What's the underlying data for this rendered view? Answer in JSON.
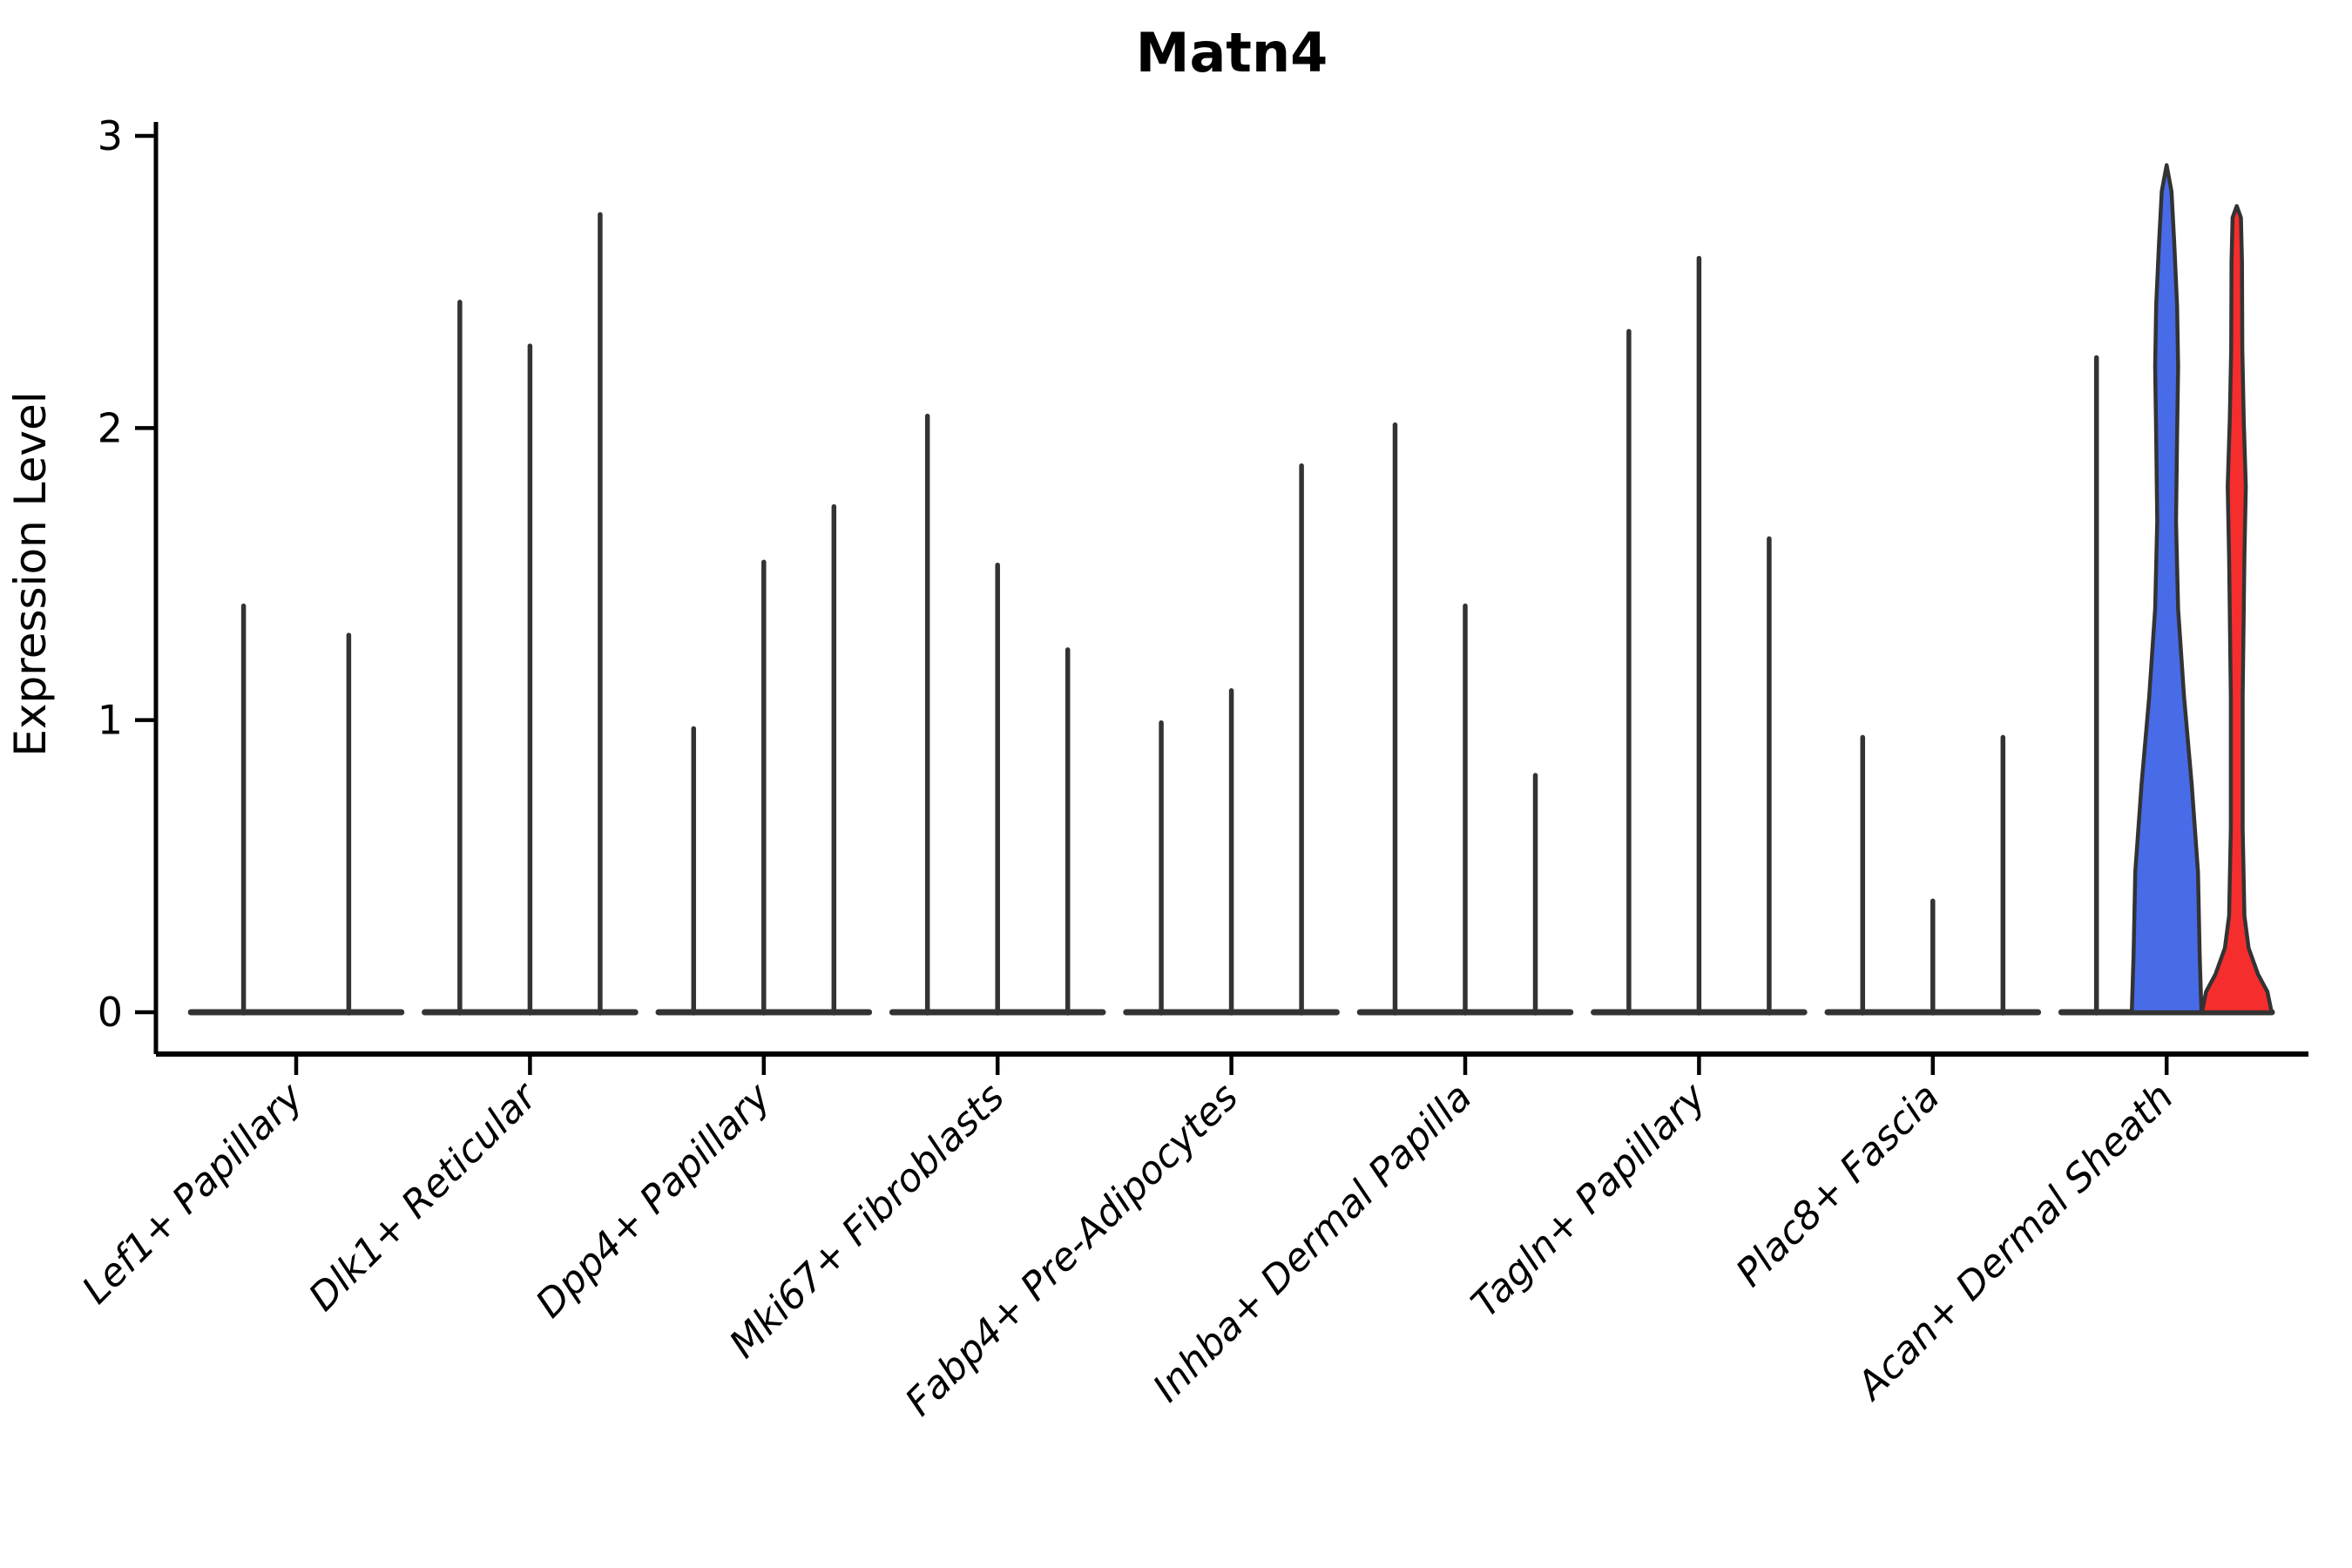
{
  "title": "Matn4",
  "chart_data": {
    "type": "violin",
    "title": "Matn4",
    "xlabel": "",
    "ylabel": "Expression Level",
    "ylim": [
      0,
      3
    ],
    "yticks": [
      "0",
      "1",
      "2",
      "3"
    ],
    "ytick_values": [
      0,
      1,
      2,
      3
    ],
    "grid": "off",
    "legend": "none",
    "categories": [
      "Lef1+ Papillary",
      "Dlk1+ Reticular",
      "Dpp4+ Papillary",
      "Mki67+ Fibroblasts",
      "Fabp4+ Pre-Adipocytes",
      "Inhba+ Dermal Papilla",
      "Tagln+ Papillary",
      "Plac8+ Fascia",
      "Acan+ Dermal Sheath"
    ],
    "groups": [
      {
        "label": "Lef1+ Papillary",
        "violins": [
          {
            "style": "spike",
            "max": 1.4
          },
          {
            "style": "spike",
            "max": 1.3
          }
        ]
      },
      {
        "label": "Dlk1+ Reticular",
        "violins": [
          {
            "style": "spike",
            "max": 2.44
          },
          {
            "style": "spike",
            "max": 2.29
          },
          {
            "style": "spike",
            "max": 2.74
          }
        ]
      },
      {
        "label": "Dpp4+ Papillary",
        "violins": [
          {
            "style": "spike",
            "max": 0.98
          },
          {
            "style": "spike",
            "max": 1.55
          },
          {
            "style": "spike",
            "max": 1.74
          }
        ]
      },
      {
        "label": "Mki67+ Fibroblasts",
        "violins": [
          {
            "style": "spike",
            "max": 2.05
          },
          {
            "style": "spike",
            "max": 1.54
          },
          {
            "style": "spike",
            "max": 1.25
          }
        ]
      },
      {
        "label": "Fabp4+ Pre-Adipocytes",
        "violins": [
          {
            "style": "spike",
            "max": 1.0
          },
          {
            "style": "spike",
            "max": 1.11
          },
          {
            "style": "spike",
            "max": 1.88
          }
        ]
      },
      {
        "label": "Inhba+ Dermal Papilla",
        "violins": [
          {
            "style": "spike",
            "max": 2.02
          },
          {
            "style": "spike",
            "max": 1.4
          },
          {
            "style": "spike",
            "max": 0.82
          }
        ]
      },
      {
        "label": "Tagln+ Papillary",
        "violins": [
          {
            "style": "spike",
            "max": 2.34
          },
          {
            "style": "spike",
            "max": 2.59
          },
          {
            "style": "spike",
            "max": 1.63
          }
        ]
      },
      {
        "label": "Plac8+ Fascia",
        "violins": [
          {
            "style": "spike",
            "max": 0.95
          },
          {
            "style": "spike",
            "max": 0.39
          },
          {
            "style": "spike",
            "max": 0.95
          }
        ]
      },
      {
        "label": "Acan+ Dermal Sheath",
        "violins": [
          {
            "style": "spike",
            "max": 2.25
          },
          {
            "style": "filled",
            "max": 2.9,
            "fill": "#486BE8",
            "profile": [
              [
                0,
                1
              ],
              [
                0.19,
                0.95
              ],
              [
                0.48,
                0.9
              ],
              [
                0.78,
                0.72
              ],
              [
                1.08,
                0.5
              ],
              [
                1.38,
                0.33
              ],
              [
                1.68,
                0.27
              ],
              [
                1.97,
                0.3
              ],
              [
                2.21,
                0.33
              ],
              [
                2.42,
                0.3
              ],
              [
                2.63,
                0.22
              ],
              [
                2.81,
                0.14
              ],
              [
                2.9,
                0
              ]
            ]
          },
          {
            "style": "filled",
            "max": 2.76,
            "fill": "#F62D2D",
            "profile": [
              [
                0,
                1
              ],
              [
                0.07,
                0.88
              ],
              [
                0.13,
                0.61
              ],
              [
                0.22,
                0.34
              ],
              [
                0.33,
                0.22
              ],
              [
                0.63,
                0.17
              ],
              [
                1.08,
                0.17
              ],
              [
                1.56,
                0.22
              ],
              [
                1.8,
                0.26
              ],
              [
                2.03,
                0.2
              ],
              [
                2.27,
                0.16
              ],
              [
                2.57,
                0.15
              ],
              [
                2.72,
                0.12
              ],
              [
                2.76,
                0
              ]
            ]
          }
        ]
      }
    ],
    "colors": {
      "violin_outline": "#333333",
      "axis": "#000000",
      "filled_blue": "#486BE8",
      "filled_red": "#F62D2D",
      "background": "#FFFFFF"
    }
  }
}
